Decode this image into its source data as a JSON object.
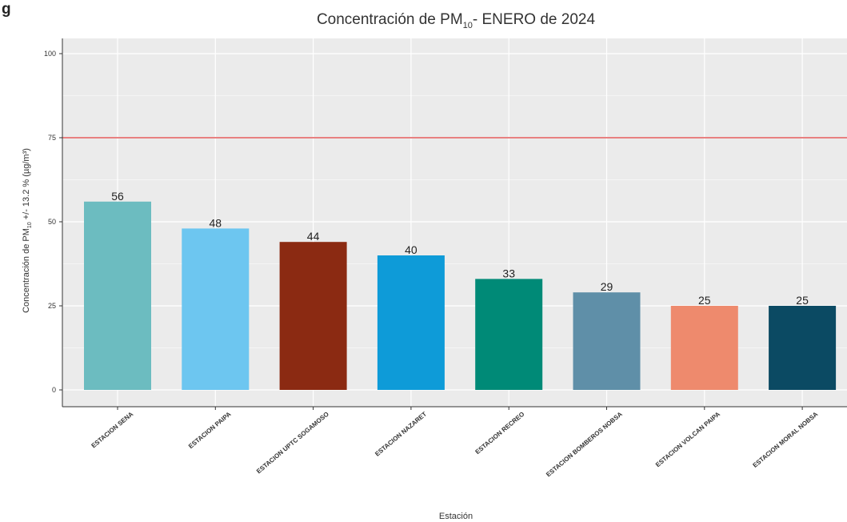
{
  "corner_label": "g",
  "chart_data": {
    "type": "bar",
    "title": "Concentración de PM",
    "title_sub": "10",
    "title_rest": "- ENERO de 2024",
    "xlabel": "Estación",
    "ylabel": "Concentración de PM",
    "ylabel_sub": "10",
    "ylabel_rest": " +/- 13.2 % (µg/m³)",
    "categories": [
      "ESTACION SENA",
      "ESTACION PAIPA",
      "ESTACION UPTC SOGAMOSO",
      "ESTACION NAZARET",
      "ESTACION RECREO",
      "ESTACION BOMBEROS NOBSA",
      "ESTACION VOLCAN PAIPA",
      "ESTACION MORAL NOBSA"
    ],
    "values": [
      56,
      48,
      44,
      40,
      33,
      29,
      25,
      25
    ],
    "bar_labels": [
      "56",
      "48",
      "44",
      "40",
      "33",
      "29",
      "25",
      "25"
    ],
    "colors": [
      "#6CBCC0",
      "#6DC6F0",
      "#8B2A12",
      "#0E9BD8",
      "#008A77",
      "#5F8FA8",
      "#EE8A6D",
      "#0B4A63"
    ],
    "ylim": [
      0,
      100
    ],
    "yticks": [
      0,
      25,
      50,
      75,
      100
    ],
    "reference_line": {
      "value": 75,
      "color": "#E88080"
    },
    "grid": true,
    "background": "#EBEBEB"
  }
}
